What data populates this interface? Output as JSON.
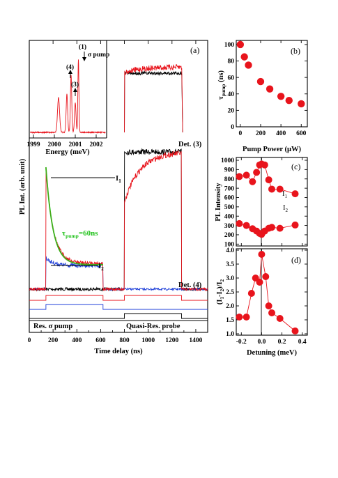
{
  "colors": {
    "red": "#e8141c",
    "black": "#000000",
    "blue": "#1f3fd8",
    "green": "#22c21c",
    "olive": "#7a7d10"
  },
  "chart_data": [
    {
      "id": "a",
      "type": "line",
      "panel_label": "(a)",
      "xlabel": "Time delay (ns)",
      "ylabel": "PL Int. (arb. unit)",
      "xlim": [
        0,
        1500
      ],
      "xticks": [
        "0",
        "200",
        "400",
        "600",
        "800",
        "1000",
        "1200",
        "1400"
      ],
      "annotations": {
        "i1": "I",
        "i1_sub": "1",
        "i2": "I",
        "i2_sub": "2",
        "tau_main": "τ",
        "tau_sub": "pump",
        "tau_value": "=60ns",
        "det3": "Det. (3)",
        "det4": "Det. (4)",
        "res_pump": "Res. σ pump",
        "quasi_probe": "Quasi-Res. probe"
      },
      "series": [
        {
          "color": "red",
          "description": "Det. (4), with resonant pump"
        },
        {
          "color": "black",
          "description": "Det. (4), without pump"
        },
        {
          "color": "blue",
          "description": "Det. (4), pump only"
        },
        {
          "color": "green",
          "description": "exponential fit"
        }
      ]
    },
    {
      "id": "a-inset",
      "type": "line",
      "xlabel": "Energy (meV)",
      "xlim": [
        1998.8,
        2002.5
      ],
      "xticks": [
        "1999",
        "2000",
        "2001",
        "2002"
      ],
      "peak_labels": [
        "(1)",
        "σ pump",
        "(4)",
        "(3)"
      ]
    },
    {
      "id": "b",
      "type": "scatter",
      "panel_label": "(b)",
      "xlabel": "Pump Power (μW)",
      "ylabel_main": "τ",
      "ylabel_sub": "pump",
      "ylabel_unit": " (ns)",
      "xlim": [
        -40,
        660
      ],
      "ylim": [
        0,
        105
      ],
      "xticks": [
        "0",
        "200",
        "400",
        "600"
      ],
      "yticks": [
        "0",
        "20",
        "40",
        "60",
        "80",
        "100"
      ],
      "x": [
        0,
        40,
        80,
        200,
        290,
        400,
        480,
        600
      ],
      "y": [
        100,
        85,
        75,
        55,
        46,
        37,
        32,
        28
      ]
    },
    {
      "id": "c",
      "type": "scatter",
      "panel_label": "(c)",
      "ylabel": "PL Intensity",
      "xlim": [
        -0.25,
        0.45
      ],
      "ylim": [
        80,
        1030
      ],
      "yticks": [
        "100",
        "200",
        "300",
        "400",
        "500",
        "600",
        "700",
        "800",
        "900",
        "1000"
      ],
      "series": [
        {
          "name": "I",
          "sub": "1",
          "x": [
            -0.22,
            -0.15,
            -0.09,
            -0.05,
            -0.02,
            0.0,
            0.03,
            0.07,
            0.1,
            0.18,
            0.33
          ],
          "y": [
            825,
            840,
            770,
            870,
            950,
            960,
            950,
            790,
            690,
            690,
            640
          ]
        },
        {
          "name": "I",
          "sub": "2",
          "x": [
            -0.22,
            -0.15,
            -0.09,
            -0.05,
            -0.02,
            0.0,
            0.03,
            0.07,
            0.1,
            0.18,
            0.33
          ],
          "y": [
            320,
            300,
            265,
            240,
            215,
            205,
            240,
            270,
            280,
            270,
            305
          ]
        }
      ]
    },
    {
      "id": "d",
      "type": "scatter",
      "panel_label": "(d)",
      "xlabel": "Detuning (meV)",
      "ylabel": "(I",
      "ylabel_full": "(I1-I2)/I2",
      "xlim": [
        -0.25,
        0.45
      ],
      "ylim": [
        0.95,
        4.05
      ],
      "xticks": [
        "-0.2",
        "0.0",
        "0.2",
        "0.4"
      ],
      "yticks": [
        "1.0",
        "1.5",
        "2.0",
        "2.5",
        "3.0",
        "3.5",
        "4.0"
      ],
      "x": [
        -0.22,
        -0.15,
        -0.1,
        -0.06,
        -0.02,
        0.0,
        0.04,
        0.07,
        0.1,
        0.18,
        0.33
      ],
      "y": [
        1.6,
        1.6,
        2.45,
        3.0,
        2.85,
        3.85,
        3.05,
        2.0,
        1.75,
        1.55,
        1.1
      ]
    }
  ]
}
